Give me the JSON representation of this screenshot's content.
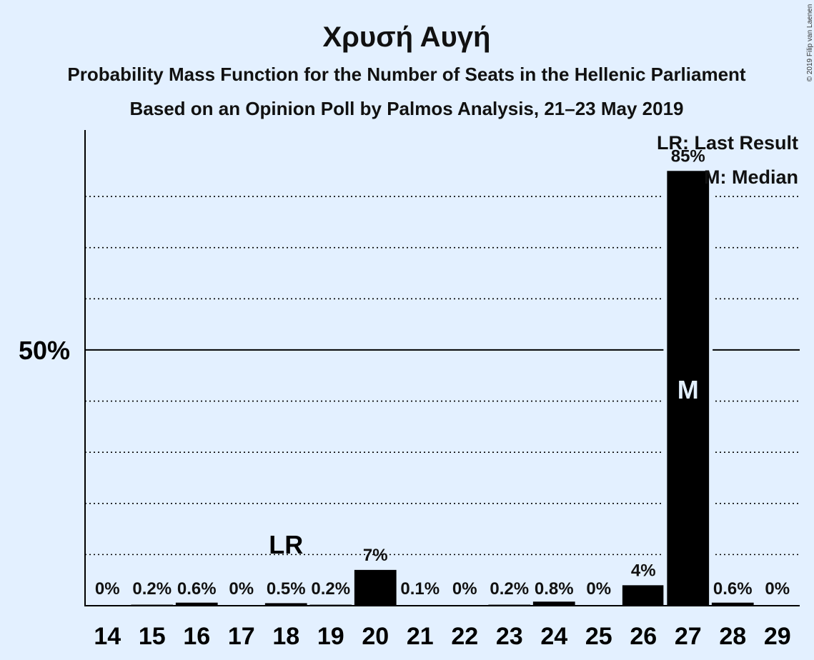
{
  "chart_data": {
    "type": "bar",
    "title": "Χρυσή Αυγή",
    "subtitle": "Probability Mass Function for the Number of Seats in the Hellenic Parliament",
    "subtitle2": "Based on an Opinion Poll by Palmos Analysis, 21–23 May 2019",
    "copyright": "© 2019 Filip van Laenen",
    "categories": [
      "14",
      "15",
      "16",
      "17",
      "18",
      "19",
      "20",
      "21",
      "22",
      "23",
      "24",
      "25",
      "26",
      "27",
      "28",
      "29"
    ],
    "values": [
      0,
      0.2,
      0.6,
      0,
      0.5,
      0.2,
      7,
      0.1,
      0,
      0.2,
      0.8,
      0,
      4,
      85,
      0.6,
      0
    ],
    "value_labels": [
      "0%",
      "0.2%",
      "0.6%",
      "0%",
      "0.5%",
      "0.2%",
      "7%",
      "0.1%",
      "0%",
      "0.2%",
      "0.8%",
      "0%",
      "4%",
      "85%",
      "0.6%",
      "0%"
    ],
    "ylim": [
      0,
      93
    ],
    "ytick_label": "50%",
    "ytick_value": 50,
    "gridlines": [
      10,
      20,
      30,
      40,
      60,
      70,
      80
    ],
    "last_result": {
      "category": "18",
      "label": "LR"
    },
    "median": {
      "category": "27",
      "label": "M"
    },
    "legend": [
      "LR: Last Result",
      "M: Median"
    ],
    "bar_color": "#000000",
    "background": "#e3f0ff"
  }
}
